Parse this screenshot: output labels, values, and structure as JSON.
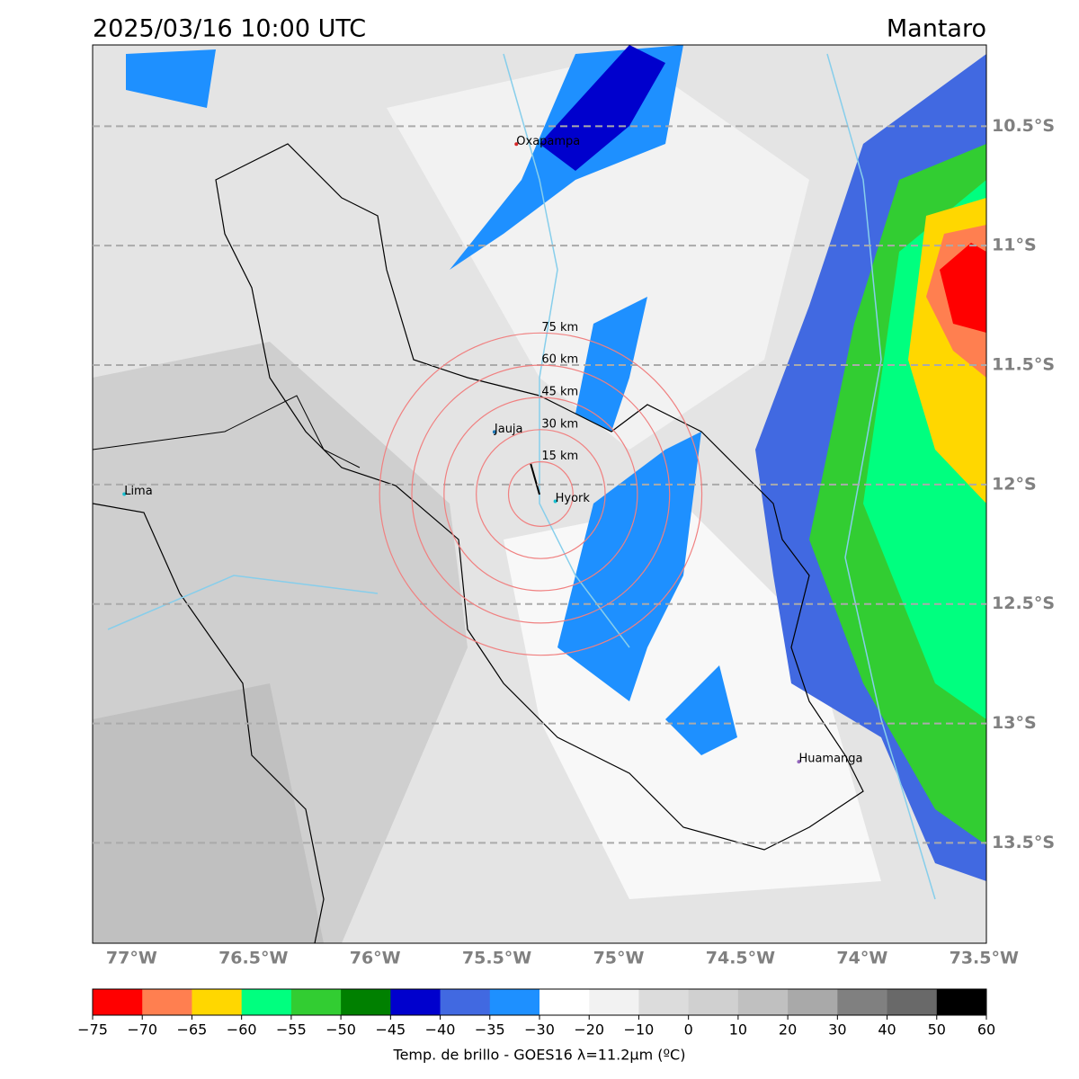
{
  "header": {
    "title": "2025/03/16 10:00 UTC",
    "region": "Mantaro"
  },
  "map": {
    "xlim": [
      -77.16,
      -73.49
    ],
    "ylim": [
      -13.92,
      -10.16
    ],
    "lon_ticks": [
      {
        "value": -77,
        "label": "77°W"
      },
      {
        "value": -76.5,
        "label": "76.5°W"
      },
      {
        "value": -76,
        "label": "76°W"
      },
      {
        "value": -75.5,
        "label": "75.5°W"
      },
      {
        "value": -75,
        "label": "75°W"
      },
      {
        "value": -74.5,
        "label": "74.5°W"
      },
      {
        "value": -74,
        "label": "74°W"
      },
      {
        "value": -73.5,
        "label": "73.5°W"
      }
    ],
    "lat_ticks": [
      {
        "value": -10.5,
        "label": "10.5°S"
      },
      {
        "value": -11,
        "label": "11°S"
      },
      {
        "value": -11.5,
        "label": "11.5°S"
      },
      {
        "value": -12,
        "label": "12°S"
      },
      {
        "value": -12.5,
        "label": "12.5°S"
      },
      {
        "value": -13,
        "label": "13°S"
      },
      {
        "value": -13.5,
        "label": "13.5°S"
      }
    ],
    "places": [
      {
        "name": "Oxapampa",
        "lon": -75.42,
        "lat": -10.575,
        "color": "#d62728"
      },
      {
        "name": "Jauja",
        "lon": -75.51,
        "lat": -11.78,
        "color": "#1f77b4"
      },
      {
        "name": "Hyork",
        "lon": -75.26,
        "lat": -12.07,
        "color": "#17becf"
      },
      {
        "name": "Lima",
        "lon": -77.03,
        "lat": -12.04,
        "color": "#17becf"
      },
      {
        "name": "Huamanga",
        "lon": -74.26,
        "lat": -13.16,
        "color": "#9467bd"
      }
    ],
    "rings": {
      "center_lon": -75.32,
      "center_lat": -12.04,
      "color": "#f08080",
      "radii": [
        {
          "value": 15,
          "label": "15 km"
        },
        {
          "value": 30,
          "label": "30 km"
        },
        {
          "value": 45,
          "label": "45 km"
        },
        {
          "value": 60,
          "label": "60 km"
        },
        {
          "value": 75,
          "label": "75 km"
        }
      ]
    }
  },
  "colorbar": {
    "label": "Temp. de brillo - GOES16 λ=11.2μm (ºC)",
    "colors": [
      "#ff0000",
      "#ff7f50",
      "#ffd700",
      "#00ff7f",
      "#32cd32",
      "#008000",
      "#0000cd",
      "#4169e1",
      "#1e90ff",
      "#ffffff",
      "#f2f2f2",
      "#dcdcdc",
      "#d0d0d0",
      "#c0c0c0",
      "#a9a9a9",
      "#808080",
      "#696969",
      "#000000"
    ],
    "ticks": [
      {
        "value": -75,
        "label": "−75"
      },
      {
        "value": -70,
        "label": "−70"
      },
      {
        "value": -65,
        "label": "−65"
      },
      {
        "value": -60,
        "label": "−60"
      },
      {
        "value": -55,
        "label": "−55"
      },
      {
        "value": -50,
        "label": "−50"
      },
      {
        "value": -45,
        "label": "−45"
      },
      {
        "value": -40,
        "label": "−40"
      },
      {
        "value": -35,
        "label": "−35"
      },
      {
        "value": -30,
        "label": "−30"
      },
      {
        "value": -20,
        "label": "−20"
      },
      {
        "value": -10,
        "label": "−10"
      },
      0,
      10,
      20,
      30,
      40,
      50,
      60
    ]
  }
}
